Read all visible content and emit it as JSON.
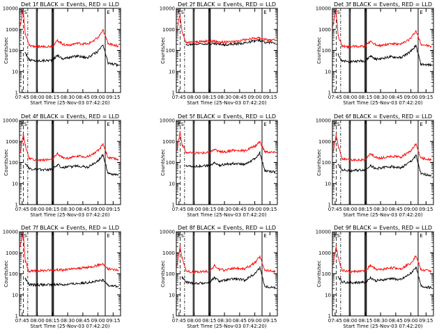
{
  "figure": {
    "panel_titles": [
      "Det 1f BLACK = Events, RED = LLD",
      "Det 2f BLACK = Events, RED = LLD",
      "Det 3f BLACK = Events, RED = LLD",
      "Det 4f BLACK = Events, RED = LLD",
      "Det 5f BLACK = Events, RED = LLD",
      "Det 6f BLACK = Events, RED = LLD",
      "Det 7f BLACK = Events, RED = LLD",
      "Det 8f BLACK = Events, RED = LLD",
      "Det 9f BLACK = Events, RED = LLD"
    ],
    "xlabel": "Start Time (25-Nov-03 07:42:20)",
    "ylabel": "Counts/sec",
    "xticks": [
      "07:45",
      "08:00",
      "08:15",
      "08:30",
      "08:45",
      "09:00",
      "09:15"
    ],
    "yticks": [
      "1",
      "10",
      "100",
      "1000",
      "10000"
    ],
    "markers": [
      "ES",
      "E"
    ],
    "colors": {
      "events": "#000000",
      "lld": "#ff0000",
      "axes": "#000000",
      "background": "#ffffff"
    }
  },
  "chart_data": [
    {
      "type": "line",
      "title": "Det 1f BLACK = Events, RED = LLD",
      "xlabel": "Start Time (25-Nov-03 07:42:20)",
      "ylabel": "Counts/sec",
      "yscale": "log",
      "ylim": [
        1,
        10000
      ],
      "xlim": [
        "07:42:20",
        "09:22:20"
      ],
      "x": [
        "07:43",
        "07:46",
        "07:48",
        "07:52",
        "08:00",
        "08:15",
        "08:20",
        "08:25",
        "08:30",
        "08:40",
        "08:50",
        "09:00",
        "09:05",
        "09:10",
        "09:20"
      ],
      "series": [
        {
          "name": "BLACK = Events",
          "values": [
            null,
            null,
            80,
            35,
            32,
            35,
            60,
            40,
            45,
            55,
            45,
            90,
            180,
            25,
            20
          ]
        },
        {
          "name": "RED = LLD",
          "values": [
            1500,
            8000,
            600,
            170,
            150,
            160,
            300,
            200,
            180,
            220,
            200,
            400,
            900,
            220,
            160
          ]
        }
      ]
    },
    {
      "type": "line",
      "title": "Det 2f BLACK = Events, RED = LLD",
      "xlabel": "Start Time (25-Nov-03 07:42:20)",
      "ylabel": "Counts/sec",
      "yscale": "log",
      "ylim": [
        1,
        10000
      ],
      "xlim": [
        "07:42:20",
        "09:22:20"
      ],
      "x": [
        "07:43",
        "07:46",
        "07:48",
        "07:52",
        "08:00",
        "08:15",
        "08:20",
        "08:25",
        "08:30",
        "08:40",
        "08:50",
        "09:00",
        "09:05",
        "09:10",
        "09:20"
      ],
      "series": [
        {
          "name": "BLACK = Events",
          "values": [
            null,
            null,
            null,
            180,
            200,
            220,
            210,
            200,
            190,
            200,
            230,
            280,
            300,
            250,
            230
          ]
        },
        {
          "name": "RED = LLD",
          "values": [
            1000,
            5000,
            800,
            230,
            250,
            280,
            270,
            260,
            250,
            270,
            320,
            380,
            400,
            330,
            300
          ]
        }
      ]
    },
    {
      "type": "line",
      "title": "Det 3f BLACK = Events, RED = LLD",
      "xlabel": "Start Time (25-Nov-03 07:42:20)",
      "ylabel": "Counts/sec",
      "yscale": "log",
      "ylim": [
        1,
        10000
      ],
      "xlim": [
        "07:42:20",
        "09:22:20"
      ],
      "x": [
        "07:43",
        "07:46",
        "07:48",
        "07:52",
        "08:00",
        "08:15",
        "08:20",
        "08:25",
        "08:30",
        "08:40",
        "08:50",
        "09:00",
        "09:05",
        "09:10",
        "09:20"
      ],
      "series": [
        {
          "name": "BLACK = Events",
          "values": [
            null,
            null,
            70,
            30,
            30,
            32,
            55,
            38,
            40,
            50,
            45,
            90,
            170,
            22,
            20
          ]
        },
        {
          "name": "RED = LLD",
          "values": [
            1500,
            8000,
            500,
            160,
            150,
            160,
            280,
            190,
            170,
            210,
            190,
            380,
            850,
            200,
            150
          ]
        }
      ]
    },
    {
      "type": "line",
      "title": "Det 4f BLACK = Events, RED = LLD",
      "xlabel": "Start Time (25-Nov-03 07:42:20)",
      "ylabel": "Counts/sec",
      "yscale": "log",
      "ylim": [
        1,
        10000
      ],
      "xlim": [
        "07:42:20",
        "09:22:20"
      ],
      "x": [
        "07:43",
        "07:46",
        "07:48",
        "07:52",
        "08:00",
        "08:15",
        "08:20",
        "08:25",
        "08:30",
        "08:40",
        "08:50",
        "09:00",
        "09:05",
        "09:10",
        "09:20"
      ],
      "series": [
        {
          "name": "BLACK = Events",
          "values": [
            null,
            null,
            90,
            50,
            45,
            48,
            80,
            55,
            60,
            70,
            60,
            120,
            230,
            30,
            25
          ]
        },
        {
          "name": "RED = LLD",
          "values": [
            300,
            2200,
            700,
            150,
            130,
            140,
            260,
            170,
            160,
            200,
            190,
            350,
            750,
            170,
            140
          ]
        }
      ]
    },
    {
      "type": "line",
      "title": "Det 5f BLACK = Events, RED = LLD",
      "xlabel": "Start Time (25-Nov-03 07:42:20)",
      "ylabel": "Counts/sec",
      "yscale": "log",
      "ylim": [
        1,
        10000
      ],
      "xlim": [
        "07:42:20",
        "09:22:20"
      ],
      "x": [
        "07:43",
        "07:46",
        "07:48",
        "07:52",
        "08:00",
        "08:15",
        "08:20",
        "08:25",
        "08:30",
        "08:40",
        "08:50",
        "09:00",
        "09:05",
        "09:10",
        "09:20"
      ],
      "series": [
        {
          "name": "BLACK = Events",
          "values": [
            null,
            null,
            null,
            70,
            65,
            70,
            95,
            75,
            80,
            90,
            85,
            150,
            280,
            40,
            35
          ]
        },
        {
          "name": "RED = LLD",
          "values": [
            400,
            3000,
            700,
            300,
            280,
            300,
            420,
            330,
            320,
            380,
            360,
            600,
            1000,
            330,
            300
          ]
        }
      ]
    },
    {
      "type": "line",
      "title": "Det 6f BLACK = Events, RED = LLD",
      "xlabel": "Start Time (25-Nov-03 07:42:20)",
      "ylabel": "Counts/sec",
      "yscale": "log",
      "ylim": [
        1,
        10000
      ],
      "xlim": [
        "07:42:20",
        "09:22:20"
      ],
      "x": [
        "07:43",
        "07:46",
        "07:48",
        "07:52",
        "08:00",
        "08:15",
        "08:20",
        "08:25",
        "08:30",
        "08:40",
        "08:50",
        "09:00",
        "09:05",
        "09:10",
        "09:20"
      ],
      "series": [
        {
          "name": "BLACK = Events",
          "values": [
            null,
            null,
            80,
            45,
            40,
            45,
            75,
            50,
            55,
            65,
            55,
            110,
            220,
            28,
            25
          ]
        },
        {
          "name": "RED = LLD",
          "values": [
            300,
            2200,
            650,
            150,
            130,
            140,
            260,
            170,
            160,
            200,
            180,
            340,
            720,
            160,
            140
          ]
        }
      ]
    },
    {
      "type": "line",
      "title": "Det 7f BLACK = Events, RED = LLD",
      "xlabel": "Start Time (25-Nov-03 07:42:20)",
      "ylabel": "Counts/sec",
      "yscale": "log",
      "ylim": [
        1,
        10000
      ],
      "xlim": [
        "07:42:20",
        "09:22:20"
      ],
      "x": [
        "07:43",
        "07:46",
        "07:48",
        "07:52",
        "08:00",
        "08:15",
        "08:20",
        "08:25",
        "08:30",
        "08:40",
        "08:50",
        "09:00",
        "09:05",
        "09:10",
        "09:20"
      ],
      "series": [
        {
          "name": "BLACK = Events",
          "values": [
            null,
            null,
            60,
            30,
            30,
            30,
            32,
            30,
            32,
            35,
            38,
            45,
            50,
            30,
            25
          ]
        },
        {
          "name": "RED = LLD",
          "values": [
            2000,
            9000,
            400,
            130,
            140,
            150,
            160,
            150,
            160,
            180,
            200,
            260,
            300,
            170,
            150
          ]
        }
      ]
    },
    {
      "type": "line",
      "title": "Det 8f BLACK = Events, RED = LLD",
      "xlabel": "Start Time (25-Nov-03 07:42:20)",
      "ylabel": "Counts/sec",
      "yscale": "log",
      "ylim": [
        1,
        10000
      ],
      "xlim": [
        "07:42:20",
        "09:22:20"
      ],
      "x": [
        "07:43",
        "07:46",
        "07:48",
        "07:52",
        "08:00",
        "08:15",
        "08:20",
        "08:25",
        "08:30",
        "08:40",
        "08:50",
        "09:00",
        "09:05",
        "09:10",
        "09:20"
      ],
      "series": [
        {
          "name": "BLACK = Events",
          "values": [
            null,
            null,
            70,
            40,
            35,
            38,
            65,
            45,
            48,
            58,
            50,
            100,
            200,
            25,
            22
          ]
        },
        {
          "name": "RED = LLD",
          "values": [
            250,
            2000,
            600,
            140,
            120,
            130,
            240,
            160,
            150,
            190,
            170,
            320,
            680,
            150,
            130
          ]
        }
      ]
    },
    {
      "type": "line",
      "title": "Det 9f BLACK = Events, RED = LLD",
      "xlabel": "Start Time (25-Nov-03 07:42:20)",
      "ylabel": "Counts/sec",
      "yscale": "log",
      "ylim": [
        1,
        10000
      ],
      "xlim": [
        "07:42:20",
        "09:22:20"
      ],
      "x": [
        "07:43",
        "07:46",
        "07:48",
        "07:52",
        "08:00",
        "08:15",
        "08:20",
        "08:25",
        "08:30",
        "08:40",
        "08:50",
        "09:00",
        "09:05",
        "09:10",
        "09:20"
      ],
      "series": [
        {
          "name": "BLACK = Events",
          "values": [
            null,
            null,
            75,
            42,
            38,
            40,
            68,
            47,
            50,
            60,
            52,
            105,
            210,
            26,
            22
          ]
        },
        {
          "name": "RED = LLD",
          "values": [
            260,
            2100,
            620,
            145,
            125,
            135,
            250,
            165,
            155,
            195,
            175,
            330,
            700,
            155,
            135
          ]
        }
      ]
    }
  ]
}
